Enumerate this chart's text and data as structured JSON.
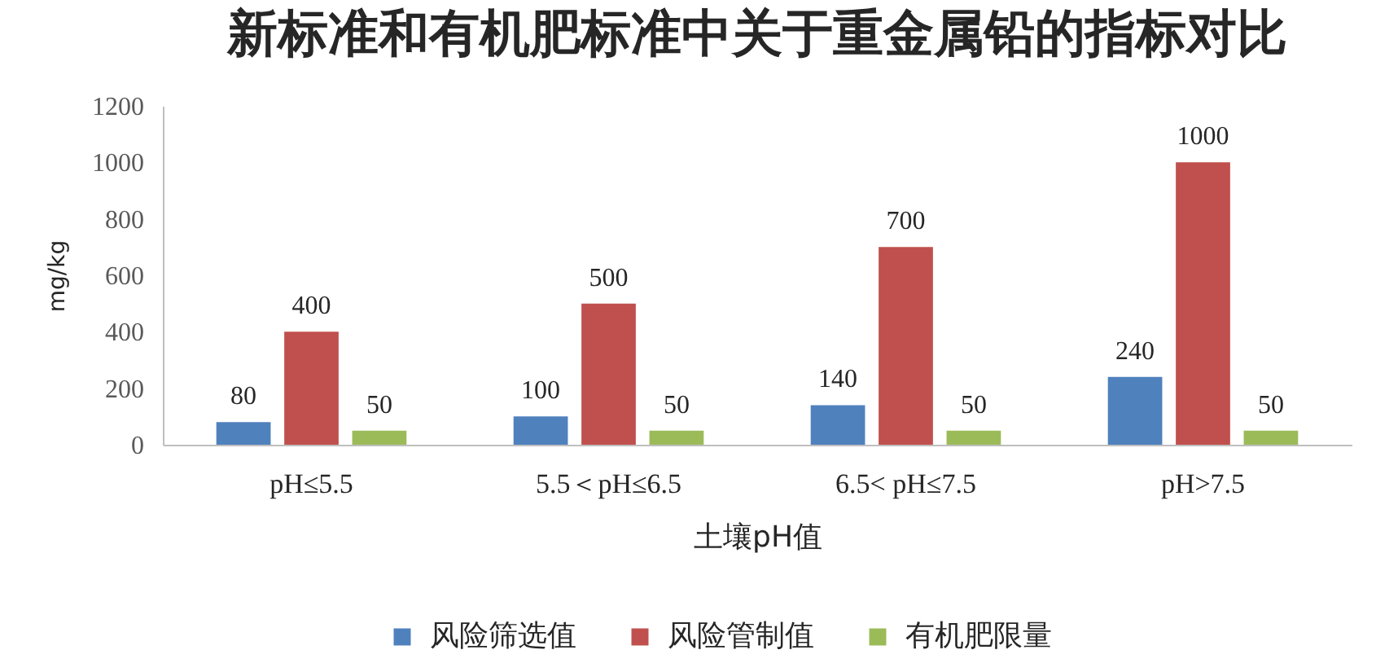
{
  "chart_data": {
    "type": "bar",
    "title": "新标准和有机肥标准中关于重金属铅的指标对比",
    "xlabel": "土壤pH值",
    "ylabel": "mg/kg",
    "categories": [
      "pH≤5.5",
      "5.5＜pH≤6.5",
      "6.5< pH≤7.5",
      "pH>7.5"
    ],
    "series": [
      {
        "name": "风险筛选值",
        "color": "#4f81bd",
        "values": [
          80,
          100,
          140,
          240
        ]
      },
      {
        "name": "风险管制值",
        "color": "#c0504d",
        "values": [
          400,
          500,
          700,
          1000
        ]
      },
      {
        "name": "有机肥限量",
        "color": "#9bbb59",
        "values": [
          50,
          50,
          50,
          50
        ]
      }
    ],
    "ylim": [
      0,
      1200
    ],
    "yticks": [
      0,
      200,
      400,
      600,
      800,
      1000,
      1200
    ],
    "data_labels": true,
    "legend": "bottom"
  }
}
